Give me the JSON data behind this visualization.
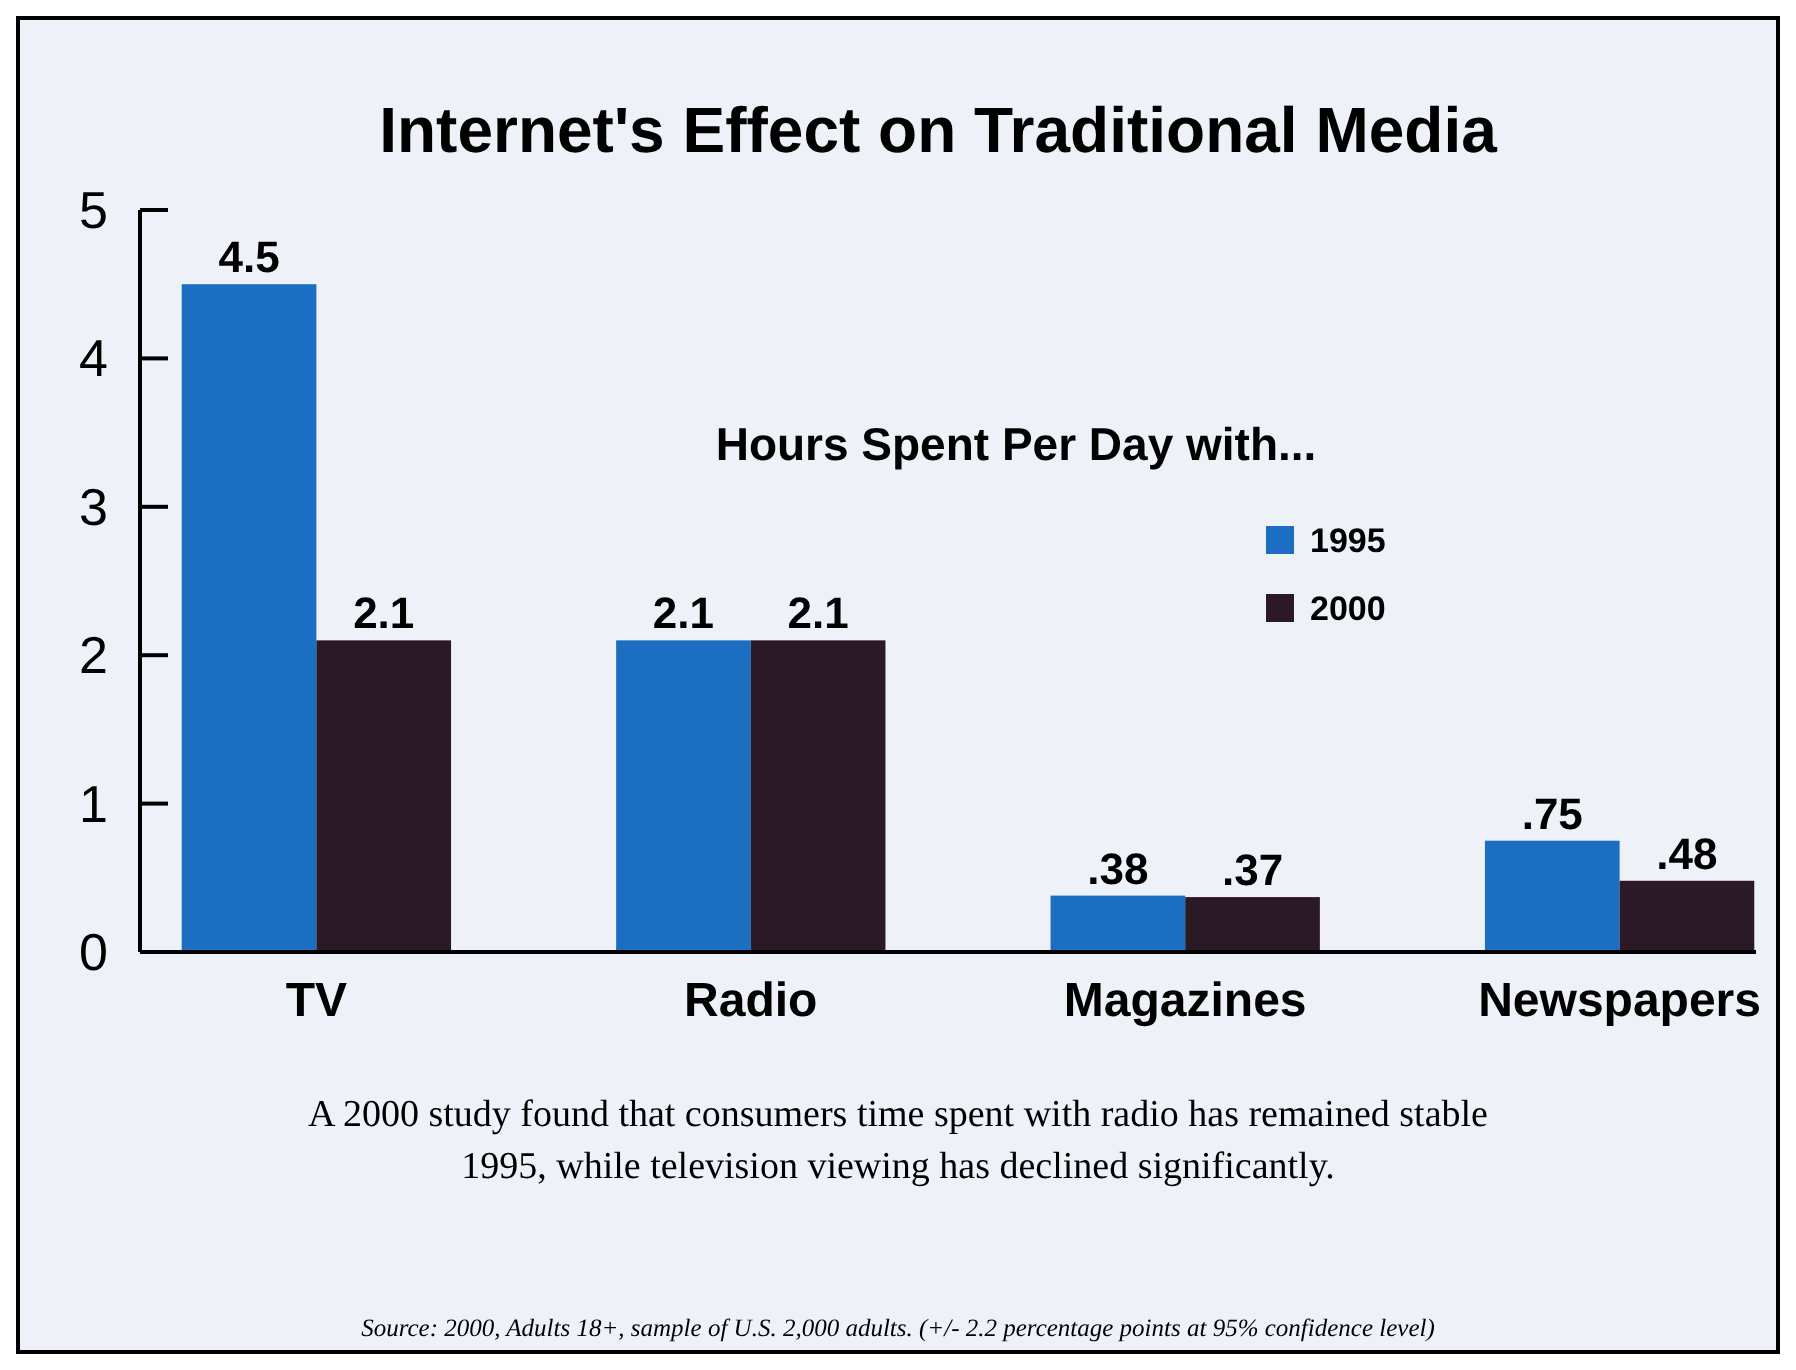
{
  "chart_data": {
    "type": "bar",
    "title": "Internet's Effect on Traditional Media",
    "legend_title": "Hours Spent Per Day with...",
    "categories": [
      "TV",
      "Radio",
      "Magazines",
      "Newspapers"
    ],
    "series": [
      {
        "name": "1995",
        "color": "#1b6ec2",
        "values": [
          4.5,
          2.1,
          0.38,
          0.75
        ],
        "value_labels": [
          "4.5",
          "2.1",
          ".38",
          ".75"
        ]
      },
      {
        "name": "2000",
        "color": "#2b1a26",
        "values": [
          2.1,
          2.1,
          0.37,
          0.48
        ],
        "value_labels": [
          "2.1",
          "2.1",
          ".37",
          ".48"
        ]
      }
    ],
    "ylim": [
      0,
      5
    ],
    "yticks": [
      0,
      1,
      2,
      3,
      4,
      5
    ],
    "grid": false,
    "legend": "top right",
    "annotations": [
      "A 2000 study found that consumers time spent with radio has remained stable 1995, while television viewing has declined significantly.",
      "Source: 2000, Adults 18+, sample of U.S. 2,000 adults. (+/- 2.2 percentage points at 95% confidence level)"
    ]
  }
}
